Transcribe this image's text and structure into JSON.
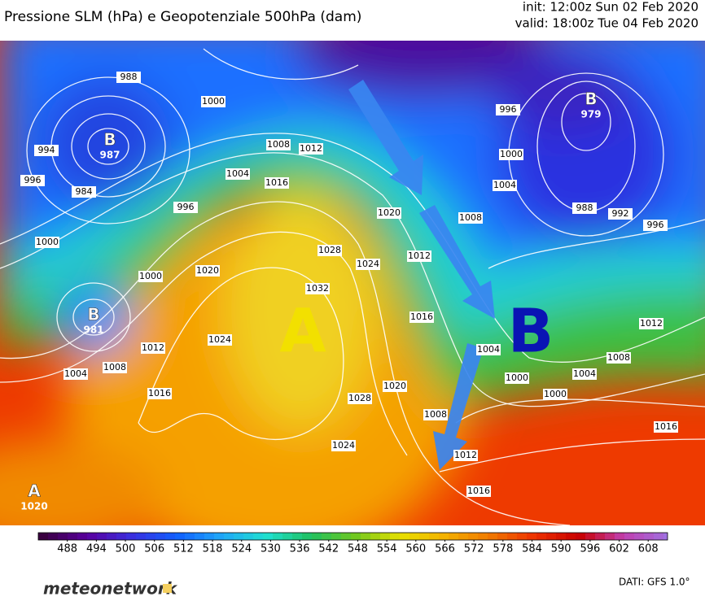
{
  "header": {
    "title": "Pressione SLM (hPa) e Geopotenziale 500hPa (dam)",
    "init": "init: 12:00z Sun 02 Feb 2020",
    "valid": "valid: 18:00z Tue 04 Feb 2020"
  },
  "map": {
    "centers": [
      {
        "letter": "B",
        "value": 987
      },
      {
        "letter": "B",
        "value": 981
      },
      {
        "letter": "B",
        "value": 979
      },
      {
        "letter": "A",
        "value": 1020
      }
    ],
    "big_labels": [
      {
        "letter": "A",
        "color": "#f2e000"
      },
      {
        "letter": "B",
        "color": "#0a14b4"
      }
    ],
    "isobar_labels": [
      988,
      1000,
      994,
      996,
      984,
      1008,
      1012,
      1004,
      1016,
      996,
      1000,
      1020,
      1000,
      1004,
      1008,
      1012,
      1016,
      1024,
      1032,
      1028,
      1024,
      1020,
      1012,
      1016,
      1020,
      1028,
      1024,
      1008,
      1012,
      1016,
      1004,
      1000,
      1000,
      1004,
      1008,
      1012,
      1016,
      996,
      992,
      988,
      1004,
      1000,
      996,
      1008
    ]
  },
  "colorbar": {
    "lim": [
      482,
      612
    ],
    "labels": [
      488,
      494,
      500,
      506,
      512,
      518,
      524,
      530,
      536,
      542,
      548,
      554,
      560,
      566,
      572,
      578,
      584,
      590,
      596,
      602,
      608
    ],
    "colors": [
      "#3a0040",
      "#5a00a0",
      "#3a30e0",
      "#1060ff",
      "#20a8f8",
      "#20e0d0",
      "#20c060",
      "#70c820",
      "#e8e000",
      "#f4b000",
      "#f07800",
      "#ee3000",
      "#c80000",
      "#c040b0",
      "#a070e0"
    ]
  },
  "footer": {
    "logo": "meteonetwork",
    "source": "DATI: GFS 1.0°"
  }
}
